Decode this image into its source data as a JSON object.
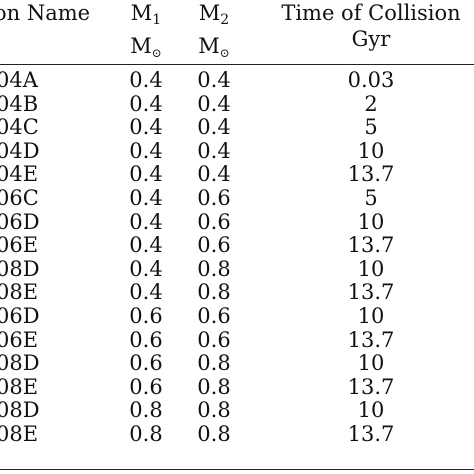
{
  "table": {
    "headers": {
      "name": "on Name",
      "m1_main": "M",
      "m1_sub": "1",
      "m1_unit_main": "M",
      "m1_unit_sub": "⊙",
      "m2_main": "M",
      "m2_sub": "2",
      "m2_unit_main": "M",
      "m2_unit_sub": "⊙",
      "time": "Time of Collision",
      "time_unit": "Gyr"
    },
    "rows": [
      {
        "name": "04A",
        "m1": "0.4",
        "m2": "0.4",
        "time": "0.03"
      },
      {
        "name": "04B",
        "m1": "0.4",
        "m2": "0.4",
        "time": "2"
      },
      {
        "name": "04C",
        "m1": "0.4",
        "m2": "0.4",
        "time": "5"
      },
      {
        "name": "04D",
        "m1": "0.4",
        "m2": "0.4",
        "time": "10"
      },
      {
        "name": "04E",
        "m1": "0.4",
        "m2": "0.4",
        "time": "13.7"
      },
      {
        "name": "06C",
        "m1": "0.4",
        "m2": "0.6",
        "time": "5"
      },
      {
        "name": "06D",
        "m1": "0.4",
        "m2": "0.6",
        "time": "10"
      },
      {
        "name": "06E",
        "m1": "0.4",
        "m2": "0.6",
        "time": "13.7"
      },
      {
        "name": "08D",
        "m1": "0.4",
        "m2": "0.8",
        "time": "10"
      },
      {
        "name": "08E",
        "m1": "0.4",
        "m2": "0.8",
        "time": "13.7"
      },
      {
        "name": "06D",
        "m1": "0.6",
        "m2": "0.6",
        "time": "10"
      },
      {
        "name": "06E",
        "m1": "0.6",
        "m2": "0.6",
        "time": "13.7"
      },
      {
        "name": "08D",
        "m1": "0.6",
        "m2": "0.8",
        "time": "10"
      },
      {
        "name": "08E",
        "m1": "0.6",
        "m2": "0.8",
        "time": "13.7"
      },
      {
        "name": "08D",
        "m1": "0.8",
        "m2": "0.8",
        "time": "10"
      },
      {
        "name": "08E",
        "m1": "0.8",
        "m2": "0.8",
        "time": "13.7"
      }
    ]
  }
}
